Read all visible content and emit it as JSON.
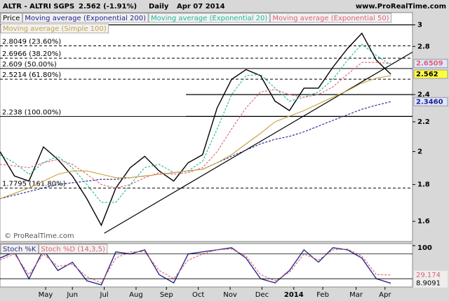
{
  "chart_data": [
    {
      "type": "line",
      "title": "ALTR - ALTRI SGPS",
      "price": "2.562 (-1.91%)",
      "period": "Daily",
      "date": "Apr 07 2014",
      "source": "www.ProRealTime.com",
      "watermark": "© ProRealTime.com",
      "xlim": [
        0,
        28.5
      ],
      "xticks": [
        {
          "value": 3.15,
          "label": "May"
        },
        {
          "value": 5.0,
          "label": "Jun"
        },
        {
          "value": 7.2,
          "label": "Jul"
        },
        {
          "value": 9.4,
          "label": "Aug"
        },
        {
          "value": 11.5,
          "label": "Sep"
        },
        {
          "value": 13.7,
          "label": "Oct"
        },
        {
          "value": 15.9,
          "label": "Nov"
        },
        {
          "value": 18.1,
          "label": "Dec"
        },
        {
          "value": 20.3,
          "label": "2014",
          "bold": true
        },
        {
          "value": 22.3,
          "label": "Feb"
        },
        {
          "value": 24.6,
          "label": "Mar"
        },
        {
          "value": 26.6,
          "label": "Apr"
        }
      ],
      "ylim": [
        1.5,
        3.12
      ],
      "log_scale": true,
      "yticks": [
        1.6,
        1.8,
        2,
        2.2,
        2.4,
        2.8,
        3
      ],
      "series": [
        {
          "name": "Price",
          "color": "#000000",
          "dashed": false,
          "values": [
            2.0,
            1.85,
            1.82,
            2.03,
            1.95,
            1.85,
            1.72,
            1.58,
            1.78,
            1.9,
            1.97,
            1.88,
            1.82,
            1.93,
            1.98,
            2.3,
            2.52,
            2.6,
            2.55,
            2.35,
            2.28,
            2.45,
            2.45,
            2.62,
            2.78,
            2.92,
            2.68,
            2.562
          ]
        },
        {
          "name": "Moving average (Exponential 200)",
          "color": "#1c1c8c",
          "dashed": true,
          "values": [
            1.72,
            1.74,
            1.76,
            1.78,
            1.8,
            1.81,
            1.82,
            1.83,
            1.83,
            1.84,
            1.85,
            1.86,
            1.87,
            1.88,
            1.89,
            1.93,
            1.97,
            2.01,
            2.05,
            2.08,
            2.1,
            2.13,
            2.17,
            2.21,
            2.25,
            2.29,
            2.32,
            2.346
          ]
        },
        {
          "name": "Moving average (Exponential 20)",
          "color": "#20b89a",
          "dashed": true,
          "values": [
            1.98,
            1.93,
            1.86,
            1.93,
            1.97,
            1.9,
            1.8,
            1.7,
            1.7,
            1.8,
            1.9,
            1.92,
            1.87,
            1.88,
            1.94,
            2.15,
            2.4,
            2.55,
            2.56,
            2.45,
            2.35,
            2.38,
            2.42,
            2.52,
            2.68,
            2.82,
            2.72,
            2.64
          ]
        },
        {
          "name": "Moving average (Exponential 50)",
          "color": "#e06070",
          "dashed": true,
          "values": [
            1.92,
            1.91,
            1.9,
            1.93,
            1.95,
            1.92,
            1.86,
            1.8,
            1.78,
            1.8,
            1.84,
            1.87,
            1.86,
            1.87,
            1.9,
            2.0,
            2.15,
            2.3,
            2.42,
            2.44,
            2.4,
            2.38,
            2.4,
            2.46,
            2.56,
            2.66,
            2.66,
            2.651
          ]
        },
        {
          "name": "Moving average (Simple 100)",
          "color": "#c8a040",
          "dashed": false,
          "values": [
            1.72,
            1.75,
            1.78,
            1.82,
            1.86,
            1.88,
            1.88,
            1.86,
            1.84,
            1.84,
            1.85,
            1.86,
            1.87,
            1.88,
            1.89,
            1.93,
            1.98,
            2.05,
            2.12,
            2.2,
            2.24,
            2.28,
            2.33,
            2.38,
            2.43,
            2.49,
            2.53,
            2.55
          ]
        }
      ],
      "fib_levels": [
        {
          "value": 2.8049,
          "label": "2.8049 (23.60%)",
          "dashed": true
        },
        {
          "value": 2.6966,
          "label": "2.6966 (38.20%)",
          "dashed": true
        },
        {
          "value": 2.609,
          "label": "2.609 (50.00%)",
          "dashed": false
        },
        {
          "value": 2.5214,
          "label": "2.5214 (61.80%)",
          "dashed": true
        },
        {
          "value": 2.238,
          "label": "2.238 (100.00%)",
          "dashed": false
        },
        {
          "value": 1.7795,
          "label": "1.7795 (161.80%)",
          "dashed": true
        }
      ],
      "hlines": [
        {
          "value": 3,
          "x_from": 0
        },
        {
          "value": 2.4,
          "x_from": 12.85
        },
        {
          "value": 2.238,
          "x_from": 12.85
        }
      ],
      "trendline": {
        "x": [
          7.2,
          28.5
        ],
        "y": [
          1.54,
          2.75
        ]
      },
      "price_markers": [
        {
          "value": 2.6509,
          "label": "2.6509",
          "color": "#e06070",
          "background": "#dfe6ff"
        },
        {
          "value": 2.562,
          "label": "2.562",
          "color": "#000000",
          "background": "#ffff40"
        },
        {
          "value": 2.346,
          "label": "2.3460",
          "color": "#1c1c8c",
          "background": "#dfe6ff"
        }
      ]
    },
    {
      "type": "line",
      "ylim": [
        0,
        105
      ],
      "yticks": [
        100
      ],
      "levels": [
        80,
        20
      ],
      "series": [
        {
          "name": "Stoch %K",
          "color": "#2a2a8a",
          "dashed": false,
          "values": [
            70,
            85,
            20,
            90,
            40,
            60,
            15,
            5,
            85,
            80,
            90,
            30,
            10,
            80,
            85,
            90,
            95,
            70,
            20,
            10,
            40,
            90,
            60,
            95,
            90,
            70,
            20,
            8.9091
          ]
        },
        {
          "name": "Stoch %D (14,3,5)",
          "color": "#e06070",
          "dashed": true,
          "values": [
            65,
            80,
            30,
            80,
            50,
            55,
            25,
            10,
            70,
            85,
            85,
            40,
            20,
            65,
            80,
            90,
            92,
            75,
            30,
            15,
            35,
            80,
            65,
            90,
            92,
            75,
            30,
            29.174
          ]
        }
      ],
      "value_markers": [
        {
          "value": 29.174,
          "label": "29.174",
          "color": "#e06070"
        },
        {
          "value": 8.9091,
          "label": "8.9091",
          "color": "#000000"
        }
      ]
    }
  ]
}
